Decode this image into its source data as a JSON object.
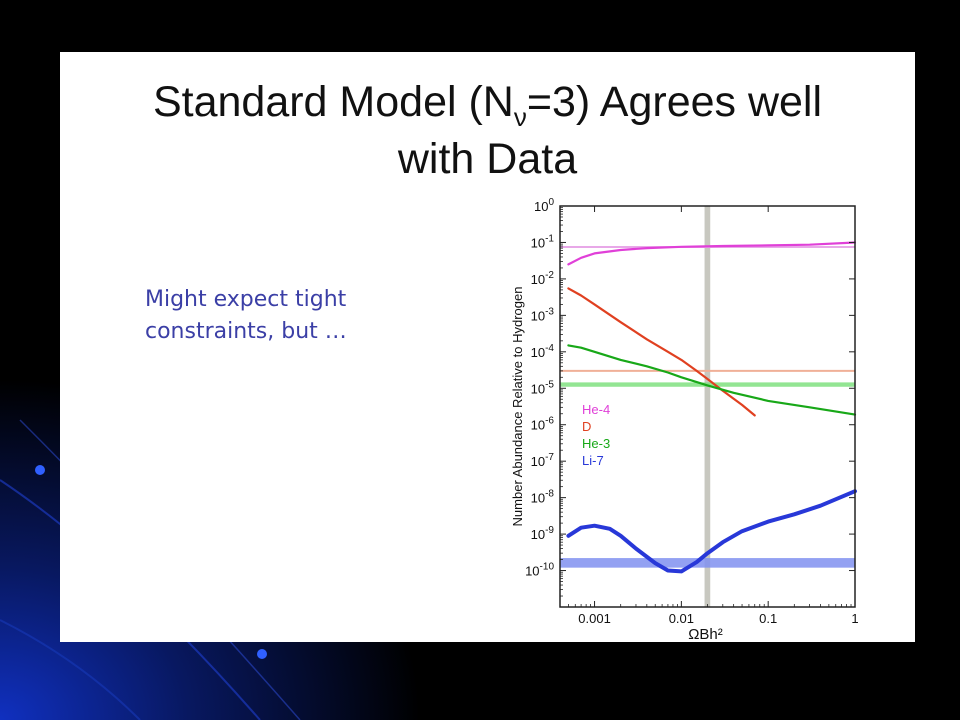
{
  "slide": {
    "title_part1": "Standard Model (N",
    "title_sub": "ν",
    "title_part2": "=3) Agrees well",
    "title_line2": "with Data",
    "bullet_line1": "Might expect tight",
    "bullet_line2": "constraints, but …"
  },
  "chart_data": {
    "type": "line",
    "xlabel": "ΩBh²",
    "ylabel": "Number Abundance Relative to Hydrogen",
    "xscale": "log",
    "yscale": "log",
    "xlim": [
      0.0004,
      1
    ],
    "ylim": [
      1e-11,
      1
    ],
    "x_ticks": [
      0.001,
      0.01,
      0.1,
      1
    ],
    "x_tick_labels": [
      "0.001",
      "0.01",
      "0.1",
      "1"
    ],
    "y_ticks": [
      {
        "base": "10",
        "exp": "0",
        "value": 1
      },
      {
        "base": "10",
        "exp": "-1",
        "value": 0.1
      },
      {
        "base": "10",
        "exp": "-2",
        "value": 0.01
      },
      {
        "base": "10",
        "exp": "-3",
        "value": 0.001
      },
      {
        "base": "10",
        "exp": "-4",
        "value": 0.0001
      },
      {
        "base": "10",
        "exp": "-5",
        "value": 1e-05
      },
      {
        "base": "10",
        "exp": "-6",
        "value": 1e-06
      },
      {
        "base": "10",
        "exp": "-7",
        "value": 1e-07
      },
      {
        "base": "10",
        "exp": "-8",
        "value": 1e-08
      },
      {
        "base": "10",
        "exp": "-9",
        "value": 1e-09
      },
      {
        "base": "10",
        "exp": "-10",
        "value": 1e-10
      }
    ],
    "legend_position": "lower-left",
    "series": [
      {
        "name": "He-4",
        "color": "#e040d8",
        "x": [
          0.0005,
          0.0007,
          0.001,
          0.002,
          0.004,
          0.01,
          0.03,
          0.1,
          0.3,
          1
        ],
        "y": [
          0.025,
          0.038,
          0.05,
          0.062,
          0.07,
          0.076,
          0.08,
          0.083,
          0.087,
          0.1
        ]
      },
      {
        "name": "D",
        "color": "#e04020",
        "x": [
          0.0005,
          0.0007,
          0.001,
          0.002,
          0.004,
          0.007,
          0.01,
          0.015,
          0.02,
          0.03,
          0.05,
          0.07
        ],
        "y": [
          0.0055,
          0.0035,
          0.002,
          0.00065,
          0.00022,
          0.0001,
          6e-05,
          3e-05,
          1.8e-05,
          8.5e-06,
          3.5e-06,
          1.8e-06
        ]
      },
      {
        "name": "He-3",
        "color": "#18a818",
        "x": [
          0.0005,
          0.0007,
          0.001,
          0.002,
          0.004,
          0.007,
          0.01,
          0.02,
          0.04,
          0.1,
          0.3,
          1
        ],
        "y": [
          0.00015,
          0.00013,
          0.0001,
          6e-05,
          4e-05,
          2.7e-05,
          2e-05,
          1.2e-05,
          7.5e-06,
          4.5e-06,
          3e-06,
          1.9e-06
        ]
      },
      {
        "name": "Li-7",
        "color": "#2838d8",
        "x": [
          0.0005,
          0.0007,
          0.001,
          0.0015,
          0.002,
          0.003,
          0.005,
          0.007,
          0.01,
          0.015,
          0.02,
          0.03,
          0.05,
          0.1,
          0.2,
          0.4,
          1
        ],
        "y": [
          9e-10,
          1.5e-09,
          1.7e-09,
          1.4e-09,
          9e-10,
          4e-10,
          1.6e-10,
          1e-10,
          9.5e-11,
          1.7e-10,
          3e-10,
          6e-10,
          1.2e-09,
          2.2e-09,
          3.5e-09,
          6e-09,
          1.5e-08
        ]
      }
    ],
    "observational_bands": [
      {
        "name": "He-4",
        "color": "#e8a8e8",
        "y": 0.075,
        "kind": "line"
      },
      {
        "name": "D",
        "color": "#f0b098",
        "y": 3e-05,
        "kind": "line"
      },
      {
        "name": "He-3",
        "color": "#80e080",
        "ymin": 1.1e-05,
        "ymax": 1.45e-05,
        "kind": "band"
      },
      {
        "name": "Li-7",
        "color": "#8090f0",
        "ymin": 1.2e-10,
        "ymax": 2.2e-10,
        "kind": "band"
      }
    ],
    "vertical_band": {
      "color": "#c8c8c0",
      "xmin": 0.0185,
      "xmax": 0.0215
    }
  }
}
